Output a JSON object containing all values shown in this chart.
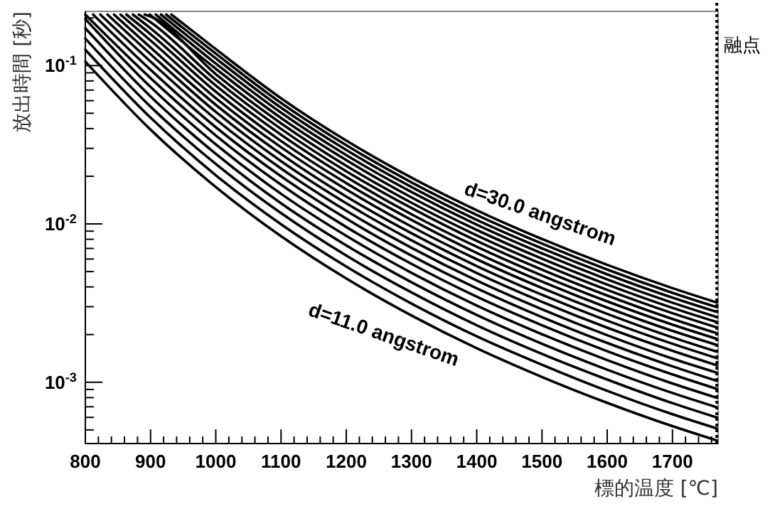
{
  "chart_data": {
    "type": "line",
    "xlabel": "標的温度 [℃]",
    "ylabel": "放出時間 [秒]",
    "log": "y",
    "grid": false,
    "marker": "none",
    "line_style": "solid",
    "xlim": [
      800,
      1770
    ],
    "ylim": [
      0.00041,
      0.22
    ],
    "xticks": [
      800,
      {
        "value": 820,
        "label": null
      },
      {
        "value": 840,
        "label": null
      },
      {
        "value": 860,
        "label": null
      },
      {
        "value": 880,
        "label": null
      },
      900,
      {
        "value": 920,
        "label": null
      },
      {
        "value": 940,
        "label": null
      },
      {
        "value": 960,
        "label": null
      },
      {
        "value": 980,
        "label": null
      },
      1000,
      {
        "value": 1020,
        "label": null
      },
      {
        "value": 1040,
        "label": null
      },
      {
        "value": 1060,
        "label": null
      },
      {
        "value": 1080,
        "label": null
      },
      1100,
      {
        "value": 1120,
        "label": null
      },
      {
        "value": 1140,
        "label": null
      },
      {
        "value": 1160,
        "label": null
      },
      {
        "value": 1180,
        "label": null
      },
      1200,
      {
        "value": 1220,
        "label": null
      },
      {
        "value": 1240,
        "label": null
      },
      {
        "value": 1260,
        "label": null
      },
      {
        "value": 1280,
        "label": null
      },
      1300,
      {
        "value": 1320,
        "label": null
      },
      {
        "value": 1340,
        "label": null
      },
      {
        "value": 1360,
        "label": null
      },
      {
        "value": 1380,
        "label": null
      },
      1400,
      {
        "value": 1420,
        "label": null
      },
      {
        "value": 1440,
        "label": null
      },
      {
        "value": 1460,
        "label": null
      },
      {
        "value": 1480,
        "label": null
      },
      1500,
      {
        "value": 1520,
        "label": null
      },
      {
        "value": 1540,
        "label": null
      },
      {
        "value": 1560,
        "label": null
      },
      {
        "value": 1580,
        "label": null
      },
      1600,
      {
        "value": 1620,
        "label": null
      },
      {
        "value": 1640,
        "label": null
      },
      {
        "value": 1660,
        "label": null
      },
      {
        "value": 1680,
        "label": null
      },
      1700,
      {
        "value": 1720,
        "label": null
      },
      {
        "value": 1740,
        "label": null
      },
      {
        "value": 1760,
        "label": null
      }
    ],
    "yticks": [
      {
        "value": 0.0005,
        "label": null
      },
      {
        "value": 0.0006,
        "label": null
      },
      {
        "value": 0.0007,
        "label": null
      },
      {
        "value": 0.0008,
        "label": null
      },
      {
        "value": 0.0009,
        "label": null
      },
      {
        "value": 0.001,
        "label": "10$^{-3}$"
      },
      {
        "value": 0.002,
        "label": null
      },
      {
        "value": 0.003,
        "label": null
      },
      {
        "value": 0.004,
        "label": null
      },
      {
        "value": 0.005,
        "label": null
      },
      {
        "value": 0.006,
        "label": null
      },
      {
        "value": 0.007,
        "label": null
      },
      {
        "value": 0.008,
        "label": null
      },
      {
        "value": 0.009,
        "label": null
      },
      {
        "value": 0.01,
        "label": "10$^{-2}$"
      },
      {
        "value": 0.02,
        "label": null
      },
      {
        "value": 0.03,
        "label": null
      },
      {
        "value": 0.04,
        "label": null
      },
      {
        "value": 0.05,
        "label": null
      },
      {
        "value": 0.06,
        "label": null
      },
      {
        "value": 0.07,
        "label": null
      },
      {
        "value": 0.08,
        "label": null
      },
      {
        "value": 0.09,
        "label": null
      },
      {
        "value": 0.1,
        "label": "10$^{-1}$"
      },
      {
        "value": 0.2,
        "label": null
      }
    ],
    "ref_lines": [
      {
        "axis": "x",
        "value": 1768,
        "label": "融点",
        "color": "#000000",
        "line_style": "dotted"
      }
    ],
    "annotations": [
      "d=30.0 angstrom",
      "d=11.0 angstrom"
    ],
    "series": [
      {
        "color": "#000000",
        "x": [
          800,
          900,
          1000,
          1100,
          1200,
          1300,
          1400,
          1500,
          1600,
          1700,
          1768
        ],
        "values": [
          0.106,
          0.0394,
          0.0171,
          0.00836,
          0.00452,
          0.00264,
          0.00164,
          0.00108,
          0.000741,
          0.000528,
          0.000429
        ]
      },
      {
        "color": "#000000",
        "x": [
          800,
          900,
          1000,
          1100,
          1200,
          1300,
          1400,
          1500,
          1600,
          1700,
          1768
        ],
        "values": [
          0.126,
          0.0469,
          0.0203,
          0.00995,
          0.00538,
          0.00314,
          0.00195,
          0.00129,
          0.000882,
          0.000628,
          0.000511
        ]
      },
      {
        "color": "#000000",
        "x": [
          800,
          900,
          1000,
          1100,
          1200,
          1300,
          1400,
          1500,
          1600,
          1700,
          1768
        ],
        "values": [
          0.148,
          0.055,
          0.0239,
          0.0117,
          0.00631,
          0.00369,
          0.00229,
          0.00151,
          0.00104,
          0.000738,
          0.000599
        ]
      },
      {
        "color": "#000000",
        "x": [
          800,
          900,
          1000,
          1100,
          1200,
          1300,
          1400,
          1500,
          1600,
          1700,
          1768
        ],
        "values": [
          0.172,
          0.0638,
          0.0277,
          0.0135,
          0.00732,
          0.00428,
          0.00266,
          0.00175,
          0.0012,
          0.000855,
          0.000695
        ]
      },
      {
        "color": "#000000",
        "x": [
          800,
          900,
          1000,
          1100,
          1200,
          1300,
          1400,
          1500,
          1600,
          1700,
          1768
        ],
        "values": [
          0.197,
          0.0733,
          0.0318,
          0.0155,
          0.00841,
          0.00491,
          0.00305,
          0.00201,
          0.00138,
          0.000982,
          0.000798
        ]
      },
      {
        "color": "#000000",
        "x": [
          800,
          900,
          1000,
          1100,
          1200,
          1300,
          1400,
          1500,
          1600,
          1700,
          1768
        ],
        "values": [
          0.21,
          0.0834,
          0.0362,
          0.0177,
          0.00956,
          0.00559,
          0.00347,
          0.00229,
          0.00157,
          0.00112,
          0.000908
        ]
      },
      {
        "color": "#000000",
        "x": [
          812,
          900,
          1000,
          1100,
          1200,
          1300,
          1400,
          1500,
          1600,
          1700,
          1768
        ],
        "values": [
          0.21,
          0.0941,
          0.0408,
          0.02,
          0.0108,
          0.0063,
          0.00392,
          0.00258,
          0.00177,
          0.00126,
          0.00102
        ]
      },
      {
        "color": "#000000",
        "x": [
          823,
          900,
          1000,
          1100,
          1200,
          1300,
          1400,
          1500,
          1600,
          1700,
          1768
        ],
        "values": [
          0.21,
          0.106,
          0.0458,
          0.0224,
          0.0121,
          0.00707,
          0.00439,
          0.00289,
          0.00198,
          0.00141,
          0.00115
        ]
      },
      {
        "color": "#000000",
        "x": [
          834,
          900,
          1000,
          1100,
          1200,
          1300,
          1400,
          1500,
          1600,
          1700,
          1768
        ],
        "values": [
          0.21,
          0.118,
          0.051,
          0.0249,
          0.0135,
          0.00788,
          0.00489,
          0.00322,
          0.00221,
          0.00158,
          0.00128
        ]
      },
      {
        "color": "#000000",
        "x": [
          844,
          900,
          1000,
          1100,
          1200,
          1300,
          1400,
          1500,
          1600,
          1700,
          1768
        ],
        "values": [
          0.21,
          0.13,
          0.0565,
          0.0276,
          0.0149,
          0.00873,
          0.00542,
          0.00357,
          0.00245,
          0.00175,
          0.00142
        ]
      },
      {
        "color": "#000000",
        "x": [
          854,
          900,
          1000,
          1100,
          1200,
          1300,
          1400,
          1500,
          1600,
          1700,
          1768
        ],
        "values": [
          0.21,
          0.144,
          0.0623,
          0.0305,
          0.0165,
          0.00962,
          0.00598,
          0.00394,
          0.0027,
          0.00192,
          0.00156
        ]
      },
      {
        "color": "#000000",
        "x": [
          863,
          900,
          1000,
          1100,
          1200,
          1300,
          1400,
          1500,
          1600,
          1700,
          1768
        ],
        "values": [
          0.21,
          0.158,
          0.0684,
          0.0334,
          0.0181,
          0.0106,
          0.00656,
          0.00432,
          0.00296,
          0.00211,
          0.00172
        ]
      },
      {
        "color": "#000000",
        "x": [
          873,
          900,
          1000,
          1100,
          1200,
          1300,
          1400,
          1500,
          1600,
          1700,
          1768
        ],
        "values": [
          0.21,
          0.172,
          0.0748,
          0.0366,
          0.0198,
          0.0115,
          0.00717,
          0.00472,
          0.00324,
          0.00231,
          0.00188
        ]
      },
      {
        "color": "#000000",
        "x": [
          882,
          900,
          1000,
          1100,
          1200,
          1300,
          1400,
          1500,
          1600,
          1700,
          1768
        ],
        "values": [
          0.21,
          0.188,
          0.0814,
          0.0398,
          0.0215,
          0.0126,
          0.00781,
          0.00514,
          0.00353,
          0.00251,
          0.00204
        ]
      },
      {
        "color": "#000000",
        "x": [
          891,
          900,
          1000,
          1100,
          1200,
          1300,
          1400,
          1500,
          1600,
          1700,
          1768
        ],
        "values": [
          0.21,
          0.204,
          0.0883,
          0.0432,
          0.0233,
          0.0136,
          0.00847,
          0.00558,
          0.00383,
          0.00273,
          0.00222
        ]
      },
      {
        "color": "#000000",
        "x": [
          899,
          1000,
          1100,
          1200,
          1300,
          1400,
          1500,
          1600,
          1700,
          1768
        ],
        "values": [
          0.21,
          0.0955,
          0.0467,
          0.0253,
          0.0147,
          0.00916,
          0.00603,
          0.00414,
          0.00295,
          0.0024
        ]
      },
      {
        "color": "#000000",
        "x": [
          908,
          1000,
          1100,
          1200,
          1300,
          1400,
          1500,
          1600,
          1700,
          1768
        ],
        "values": [
          0.21,
          0.103,
          0.0504,
          0.0272,
          0.0159,
          0.00988,
          0.00651,
          0.00446,
          0.00318,
          0.00258
        ]
      },
      {
        "color": "#000000",
        "x": [
          916,
          1000,
          1100,
          1200,
          1300,
          1400,
          1500,
          1600,
          1700,
          1768
        ],
        "values": [
          0.21,
          0.111,
          0.0542,
          0.0293,
          0.0171,
          0.0106,
          0.007,
          0.0048,
          0.00342,
          0.00278
        ]
      },
      {
        "color": "#000000",
        "x": [
          924,
          1000,
          1100,
          1200,
          1300,
          1400,
          1500,
          1600,
          1700,
          1768
        ],
        "values": [
          0.21,
          0.119,
          0.0581,
          0.0314,
          0.0183,
          0.0114,
          0.00751,
          0.00515,
          0.00367,
          0.00298
        ]
      },
      {
        "color": "#000000",
        "x": [
          932,
          1000,
          1100,
          1200,
          1300,
          1400,
          1500,
          1600,
          1700,
          1768
        ],
        "values": [
          0.21,
          0.127,
          0.0622,
          0.0336,
          0.0196,
          0.0122,
          0.00803,
          0.00551,
          0.00393,
          0.00319
        ]
      }
    ]
  }
}
